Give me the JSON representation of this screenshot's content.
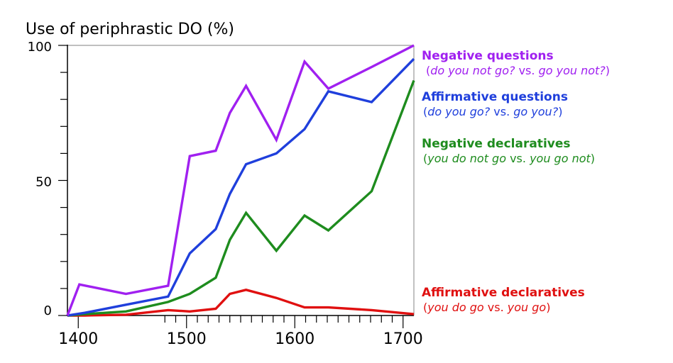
{
  "chart_data": {
    "type": "line",
    "title": "Use of periphrastic DO (%)",
    "xlabel": "",
    "ylabel": "",
    "xlim": [
      1390,
      1710
    ],
    "ylim": [
      0,
      100
    ],
    "x_ticks": [
      1400,
      1500,
      1600,
      1700
    ],
    "y_ticks": [
      0,
      50,
      100
    ],
    "grid": false,
    "legend_placement": "right",
    "series": [
      {
        "name": "Negative questions",
        "example": [
          {
            "text": "(",
            "italic": false
          },
          {
            "text": "do you not go?",
            "italic": true
          },
          {
            "text": " vs. ",
            "italic": false
          },
          {
            "text": "go you not?",
            "italic": true
          },
          {
            "text": ")",
            "italic": false
          }
        ],
        "color": "#a020f0",
        "x": [
          1390,
          1401,
          1444,
          1483,
          1503,
          1527,
          1540,
          1555,
          1583,
          1609,
          1631,
          1671,
          1710
        ],
        "y": [
          0,
          11.5,
          8,
          11,
          59,
          61,
          75,
          85,
          65,
          94,
          84,
          92,
          100
        ]
      },
      {
        "name": "Affirmative questions",
        "example": [
          {
            "text": "(",
            "italic": false
          },
          {
            "text": "do you go?",
            "italic": true
          },
          {
            "text": " vs. ",
            "italic": false
          },
          {
            "text": "go you?",
            "italic": true
          },
          {
            "text": ")",
            "italic": false
          }
        ],
        "color": "#1f3fdc",
        "x": [
          1390,
          1406,
          1444,
          1483,
          1503,
          1527,
          1540,
          1555,
          1583,
          1609,
          1631,
          1671,
          1710
        ],
        "y": [
          0,
          1,
          4,
          7,
          23,
          32,
          45,
          56,
          60,
          69,
          83,
          79,
          95
        ]
      },
      {
        "name": "Negative declaratives",
        "example": [
          {
            "text": "(",
            "italic": false
          },
          {
            "text": "you do not go",
            "italic": true
          },
          {
            "text": " vs. ",
            "italic": false
          },
          {
            "text": "you go not",
            "italic": true
          },
          {
            "text": ")",
            "italic": false
          }
        ],
        "color": "#1e8c1e",
        "x": [
          1390,
          1406,
          1444,
          1483,
          1503,
          1527,
          1540,
          1555,
          1583,
          1609,
          1631,
          1671,
          1710
        ],
        "y": [
          0,
          0.5,
          1.5,
          5,
          8,
          14,
          28,
          38,
          24,
          37,
          31.5,
          46,
          87
        ]
      },
      {
        "name": "Affirmative declaratives",
        "example": [
          {
            "text": "(",
            "italic": false
          },
          {
            "text": "you do go",
            "italic": true
          },
          {
            "text": " vs. ",
            "italic": false
          },
          {
            "text": "you go",
            "italic": true
          },
          {
            "text": ")",
            "italic": false
          }
        ],
        "color": "#e01010",
        "x": [
          1390,
          1406,
          1444,
          1483,
          1503,
          1527,
          1540,
          1555,
          1583,
          1609,
          1631,
          1671,
          1710
        ],
        "y": [
          0,
          0,
          0.3,
          2,
          1.5,
          2.5,
          8,
          9.5,
          6.5,
          3,
          3,
          2,
          0.5
        ]
      }
    ]
  }
}
